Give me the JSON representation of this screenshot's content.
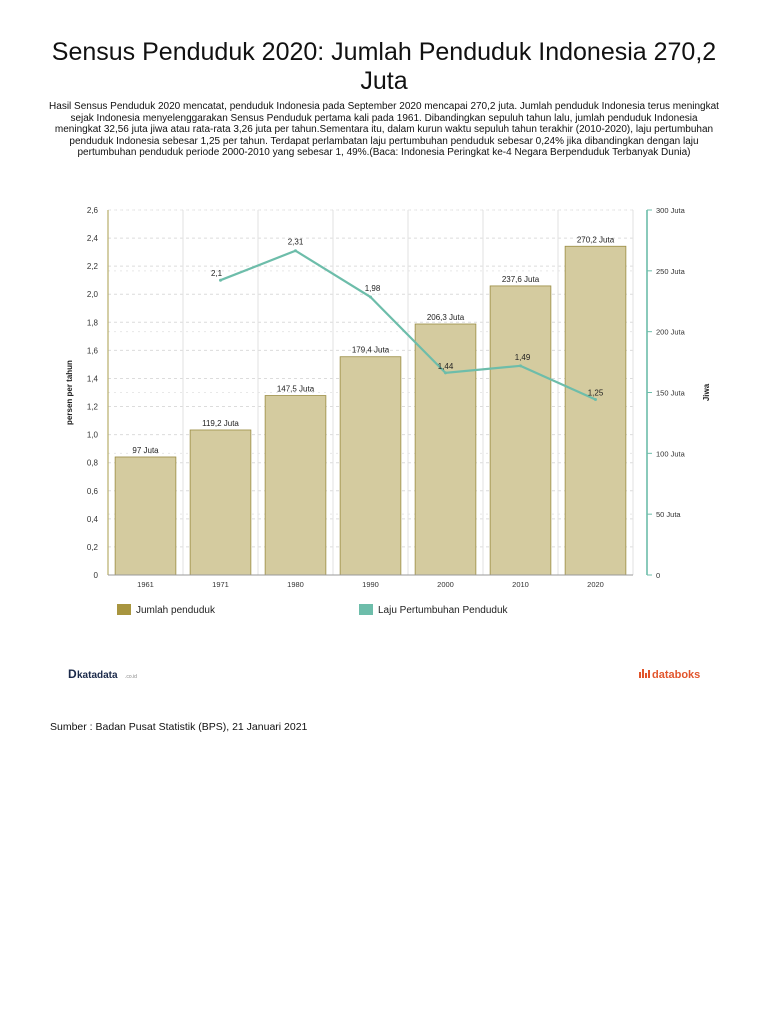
{
  "title": "Sensus Penduduk 2020: Jumlah Penduduk Indonesia 270,2 Juta",
  "intro": "Hasil Sensus Penduduk 2020 mencatat, penduduk Indonesia pada September 2020 mencapai 270,2 juta. Jumlah penduduk Indonesia terus meningkat sejak Indonesia menyelenggarakan Sensus Penduduk pertama kali pada 1961. Dibandingkan sepuluh tahun lalu, jumlah penduduk Indonesia meningkat 32,56 juta jiwa atau rata-rata 3,26 juta per tahun.Sementara itu, dalam kurun waktu sepuluh tahun terakhir (2010-2020), laju pertumbuhan penduduk Indonesia sebesar 1,25 per tahun. Terdapat perlambatan laju pertumbuhan penduduk sebesar 0,24% jika dibandingkan dengan laju pertumbuhan penduduk periode 2000-2010 yang sebesar 1, 49%.(Baca: Indonesia Peringkat ke-4 Negara Berpenduduk Terbanyak Dunia)",
  "source": "Sumber : Badan Pusat Statistik (BPS), 21 Januari 2021",
  "brand": {
    "left": "katadata",
    "left_suffix": ".co.id",
    "right": "databoks"
  },
  "colors": {
    "bar": "#d4cb9f",
    "bar_stroke": "#9a8c43",
    "legend_bar": "#a8953f",
    "line": "#6dbdaa",
    "brand_left": "#1b2a4a",
    "brand_right": "#e2552c"
  },
  "chart_data": {
    "type": "bar+line",
    "categories": [
      "1961",
      "1971",
      "1980",
      "1990",
      "2000",
      "2010",
      "2020"
    ],
    "series": [
      {
        "name": "Jumlah penduduk",
        "type": "bar",
        "axis": "right",
        "values": [
          97,
          119.2,
          147.5,
          179.4,
          206.3,
          237.6,
          270.2
        ],
        "labels": [
          "97 Juta",
          "119,2 Juta",
          "147,5 Juta",
          "179,4 Juta",
          "206,3 Juta",
          "237,6 Juta",
          "270,2 Juta"
        ]
      },
      {
        "name": "Laju Pertumbuhan Penduduk",
        "type": "line",
        "axis": "left",
        "values": [
          null,
          2.1,
          2.31,
          1.98,
          1.44,
          1.49,
          1.25
        ],
        "labels": [
          "",
          "2,1",
          "2,31",
          "1,98",
          "1,44",
          "1,49",
          "1,25"
        ]
      }
    ],
    "left_axis": {
      "label": "persen per tahun",
      "range": [
        0,
        2.6
      ],
      "ticks": [
        "0",
        "0,2",
        "0,4",
        "0,6",
        "0,8",
        "1,0",
        "1,2",
        "1,4",
        "1,6",
        "1,8",
        "2,0",
        "2,2",
        "2,4",
        "2,6"
      ]
    },
    "right_axis": {
      "label": "Jiwa",
      "range": [
        0,
        300
      ],
      "ticks": [
        "0",
        "50 Juta",
        "100 Juta",
        "150 Juta",
        "200 Juta",
        "250 Juta",
        "300 Juta"
      ]
    },
    "legend": [
      "Jumlah penduduk",
      "Laju Pertumbuhan Penduduk"
    ],
    "legend_position": "bottom"
  }
}
